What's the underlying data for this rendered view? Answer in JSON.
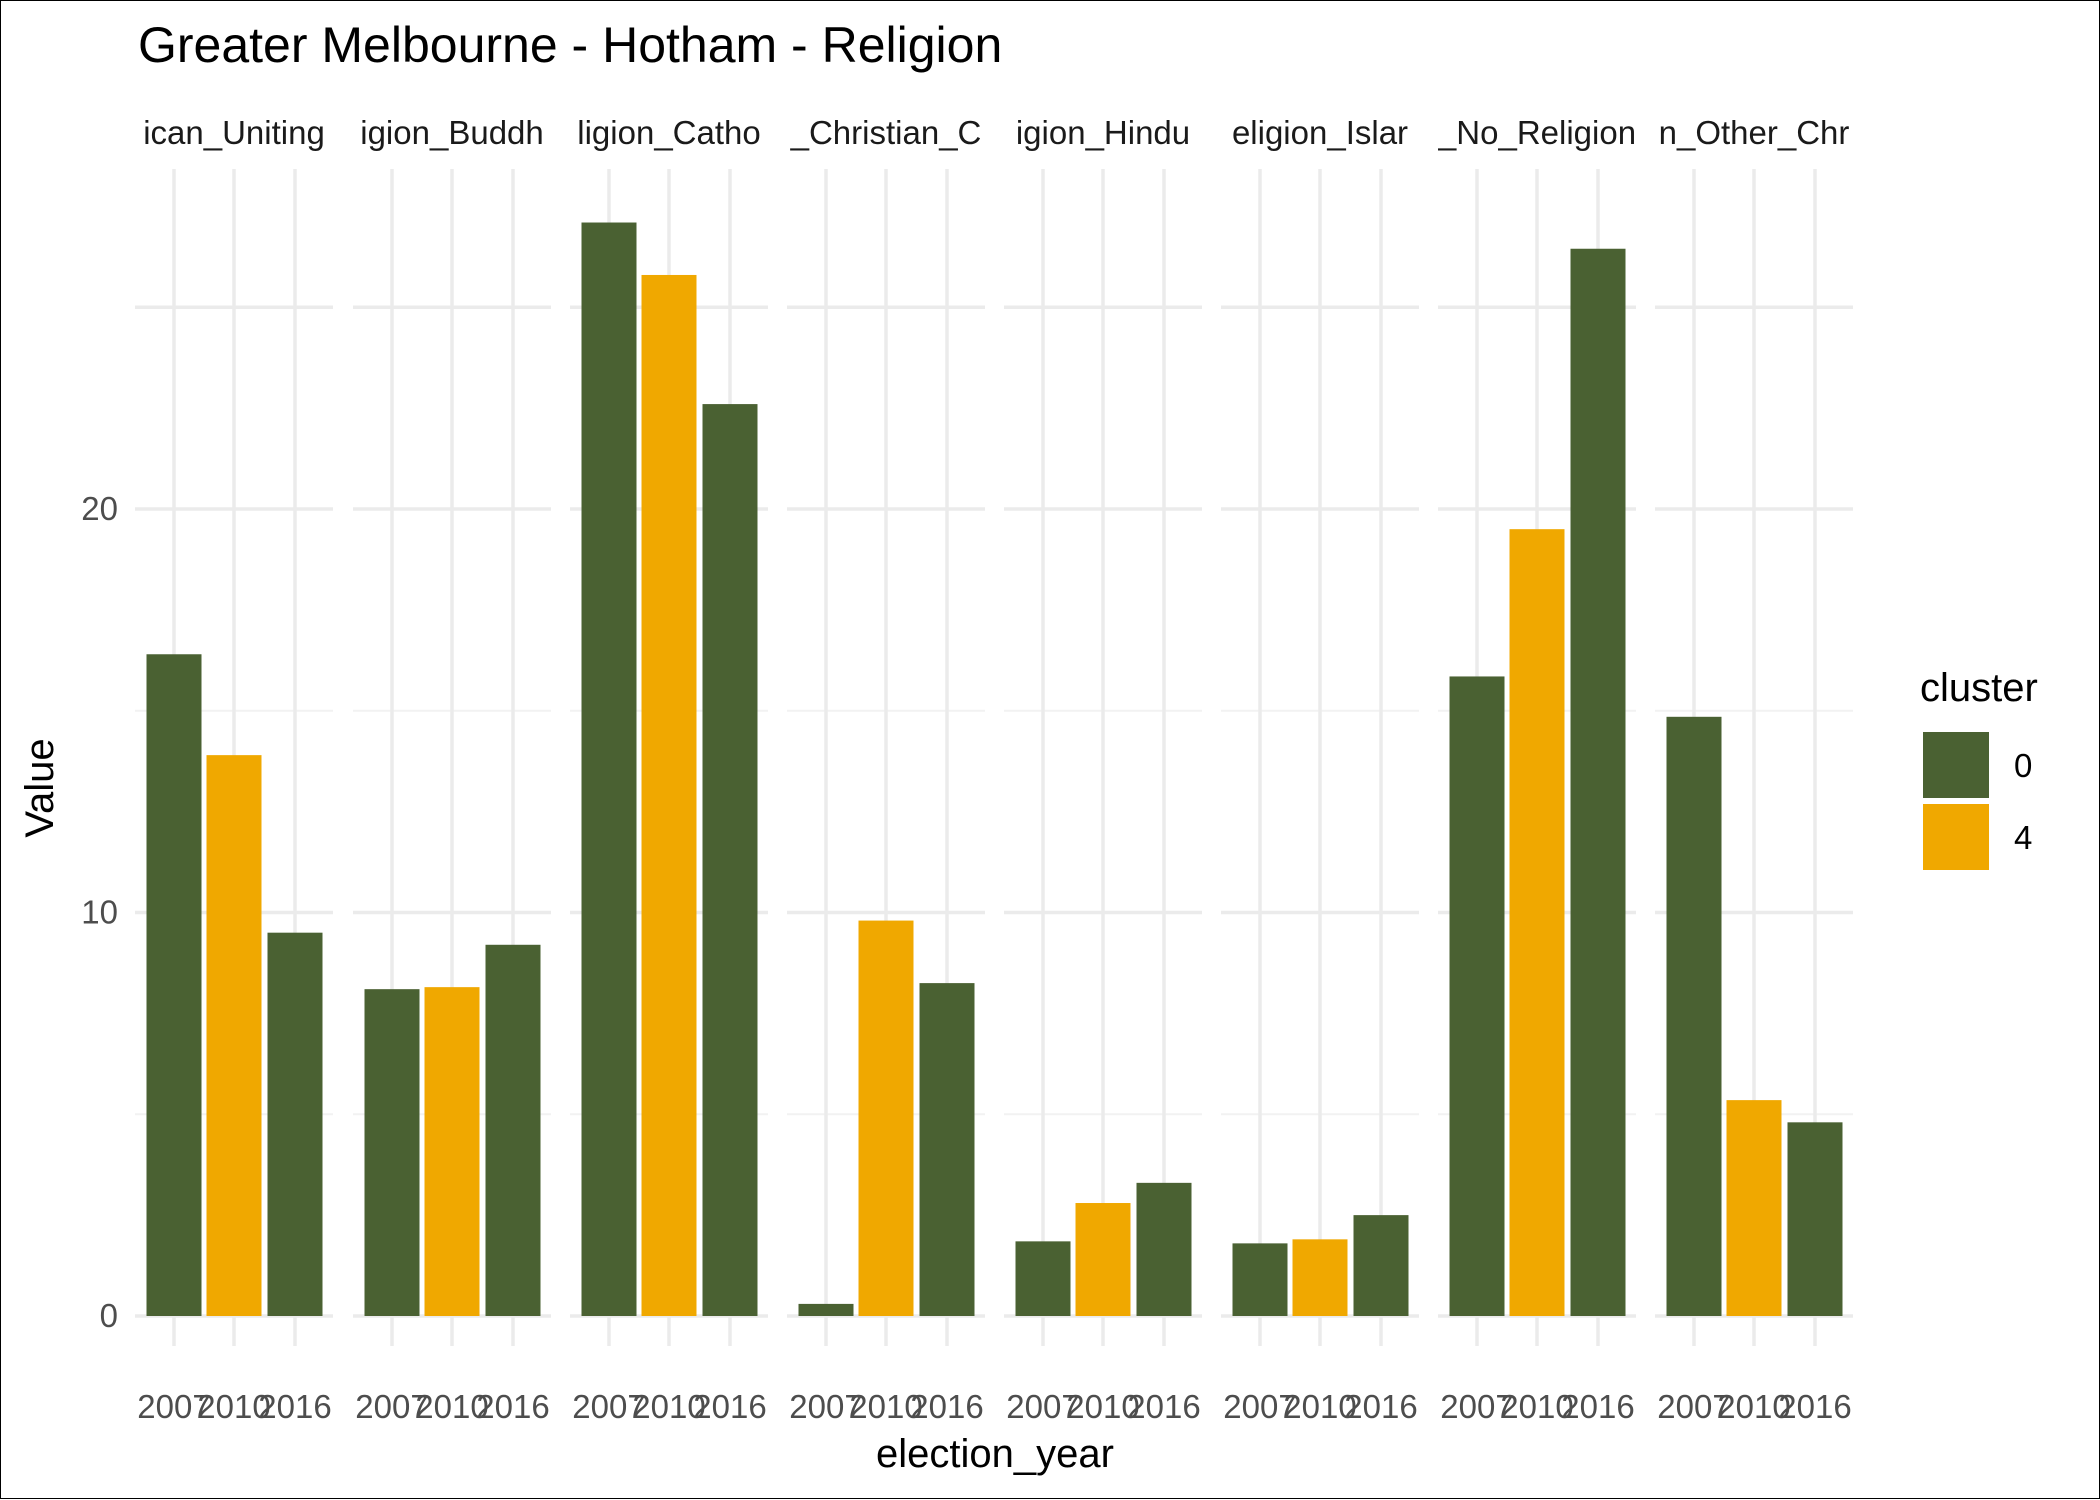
{
  "chart_data": {
    "type": "bar",
    "title": "Greater Melbourne - Hotham - Religion",
    "xlabel": "election_year",
    "ylabel": "Value",
    "ylim": [
      0,
      28
    ],
    "y_ticks": [
      0,
      10,
      20
    ],
    "grid": true,
    "legend": {
      "title": "cluster",
      "placement": "right",
      "entries": [
        {
          "label": "0",
          "color": "#4a6132"
        },
        {
          "label": "4",
          "color": "#f0a800"
        }
      ]
    },
    "x_tick_labels": [
      "2007",
      "2010",
      "2016"
    ],
    "facets": [
      {
        "strip_label": "ican_Uniting",
        "bars": [
          {
            "x": "2007",
            "cluster": "0",
            "value": 16.4
          },
          {
            "x": "2010",
            "cluster": "4",
            "value": 13.9
          },
          {
            "x": "2016",
            "cluster": "0",
            "value": 9.5
          }
        ]
      },
      {
        "strip_label": "igion_Buddh",
        "bars": [
          {
            "x": "2007",
            "cluster": "0",
            "value": 8.1
          },
          {
            "x": "2010",
            "cluster": "4",
            "value": 8.15
          },
          {
            "x": "2016",
            "cluster": "0",
            "value": 9.2
          }
        ]
      },
      {
        "strip_label": "ligion_Catho",
        "bars": [
          {
            "x": "2007",
            "cluster": "0",
            "value": 27.1
          },
          {
            "x": "2010",
            "cluster": "4",
            "value": 25.8
          },
          {
            "x": "2016",
            "cluster": "0",
            "value": 22.6
          }
        ]
      },
      {
        "strip_label": "_Christian_C",
        "bars": [
          {
            "x": "2007",
            "cluster": "0",
            "value": 0.3
          },
          {
            "x": "2010",
            "cluster": "4",
            "value": 9.8
          },
          {
            "x": "2016",
            "cluster": "0",
            "value": 8.25
          }
        ]
      },
      {
        "strip_label": "igion_Hindu",
        "bars": [
          {
            "x": "2007",
            "cluster": "0",
            "value": 1.85
          },
          {
            "x": "2010",
            "cluster": "4",
            "value": 2.8
          },
          {
            "x": "2016",
            "cluster": "0",
            "value": 3.3
          }
        ]
      },
      {
        "strip_label": "eligion_Islar",
        "bars": [
          {
            "x": "2007",
            "cluster": "0",
            "value": 1.8
          },
          {
            "x": "2010",
            "cluster": "4",
            "value": 1.9
          },
          {
            "x": "2016",
            "cluster": "0",
            "value": 2.5
          }
        ]
      },
      {
        "strip_label": "_No_Religion",
        "bars": [
          {
            "x": "2007",
            "cluster": "0",
            "value": 15.85
          },
          {
            "x": "2010",
            "cluster": "4",
            "value": 19.5
          },
          {
            "x": "2016",
            "cluster": "0",
            "value": 26.45
          }
        ]
      },
      {
        "strip_label": "n_Other_Chr",
        "bars": [
          {
            "x": "2007",
            "cluster": "0",
            "value": 14.85
          },
          {
            "x": "2010",
            "cluster": "4",
            "value": 5.35
          },
          {
            "x": "2016",
            "cluster": "0",
            "value": 4.8
          }
        ]
      }
    ]
  }
}
